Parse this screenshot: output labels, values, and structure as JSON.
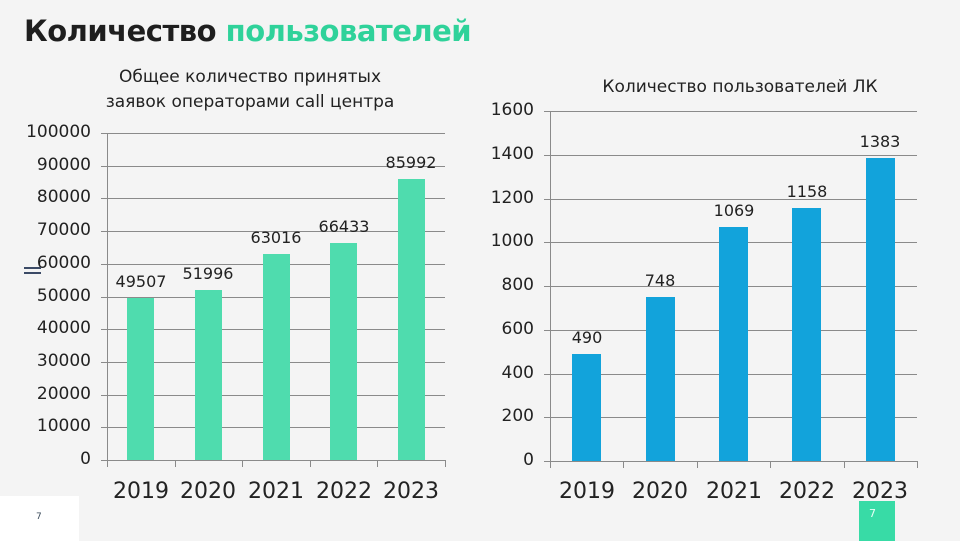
{
  "slide": {
    "title_part1": "Количество",
    "title_part2": "пользователей",
    "accent_color": "#2fd29a",
    "page_number_left": "7",
    "page_number_right": "7"
  },
  "chart_data": [
    {
      "type": "bar",
      "title": "Общее количество принятых заявок операторами call центра",
      "title_line1": "Общее количество принятых",
      "title_line2": "заявок операторами call центра",
      "categories": [
        "2019",
        "2020",
        "2021",
        "2022",
        "2023"
      ],
      "values": [
        49507,
        51996,
        63016,
        66433,
        85992
      ],
      "value_labels": [
        "49507",
        "51996",
        "63016",
        "66433",
        "85992"
      ],
      "xlabel": "",
      "ylabel": "",
      "ylim": [
        0,
        100000
      ],
      "yticks": [
        "100000",
        "90000",
        "80000",
        "70000",
        "60000",
        "50000",
        "40000",
        "30000",
        "20000",
        "10000",
        "0"
      ],
      "grid": true,
      "legend": "none",
      "color": "#4fdcae"
    },
    {
      "type": "bar",
      "title": "Количество пользователей ЛК",
      "categories": [
        "2019",
        "2020",
        "2021",
        "2022",
        "2023"
      ],
      "values": [
        490,
        748,
        1069,
        1158,
        1383
      ],
      "value_labels": [
        "490",
        "748",
        "1069",
        "1158",
        "1383"
      ],
      "xlabel": "",
      "ylabel": "",
      "ylim": [
        0,
        1600
      ],
      "yticks": [
        "1600",
        "1400",
        "1200",
        "1000",
        "800",
        "600",
        "400",
        "200",
        "0"
      ],
      "grid": true,
      "legend": "none",
      "color": "#12a3db"
    }
  ]
}
